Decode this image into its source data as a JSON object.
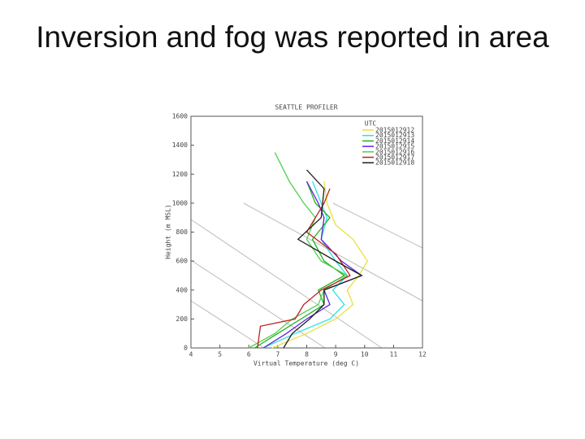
{
  "heading": "Inversion and fog was reported in area",
  "chart_data": {
    "type": "line",
    "title": "SEATTLE PROFILER",
    "xlabel": "Virtual Temperature (deg C)",
    "ylabel": "Height (m MSL)",
    "xlim": [
      4,
      12
    ],
    "xticks": [
      4,
      5,
      6,
      7,
      8,
      9,
      10,
      11,
      12
    ],
    "ylim": [
      0,
      1600
    ],
    "yticks": [
      0,
      200,
      400,
      600,
      800,
      1000,
      1200,
      1400,
      1600
    ],
    "legend_title": "UTC",
    "legend": "upper right",
    "series": [
      {
        "name": "2015012912",
        "color": "#e8e040",
        "x": [
          6.8,
          8.0,
          9.0,
          9.6,
          9.4,
          9.8,
          10.1,
          9.6,
          9.0,
          8.7,
          8.6
        ],
        "values": [
          0,
          100,
          200,
          300,
          400,
          500,
          600,
          750,
          850,
          1000,
          1150
        ]
      },
      {
        "name": "2015012913",
        "color": "#30e0e0",
        "x": [
          6.5,
          7.6,
          8.8,
          9.3,
          8.9,
          9.4,
          9.0,
          8.5,
          8.7,
          8.5,
          8.2
        ],
        "values": [
          0,
          100,
          200,
          300,
          400,
          500,
          600,
          750,
          900,
          1000,
          1150
        ]
      },
      {
        "name": "2015012914",
        "color": "#20b020",
        "x": [
          6.2,
          7.0,
          7.8,
          8.6,
          8.4,
          9.3,
          8.6,
          8.2,
          8.8,
          8.3,
          8.0
        ],
        "values": [
          0,
          100,
          200,
          300,
          400,
          500,
          600,
          750,
          900,
          1000,
          1150
        ]
      },
      {
        "name": "2015012915",
        "color": "#6020e0",
        "x": [
          6.5,
          7.3,
          8.0,
          8.8,
          8.6,
          9.9,
          9.2,
          8.5,
          8.6,
          8.4,
          8.0
        ],
        "values": [
          0,
          100,
          200,
          300,
          400,
          500,
          600,
          750,
          900,
          1000,
          1150
        ]
      },
      {
        "name": "2015012916",
        "color": "#50d050",
        "x": [
          6.0,
          6.9,
          7.5,
          8.4,
          8.6,
          9.4,
          8.5,
          8.0,
          8.3,
          7.9,
          7.4,
          6.9
        ],
        "values": [
          0,
          100,
          200,
          300,
          400,
          500,
          600,
          750,
          900,
          1000,
          1150,
          1350
        ]
      },
      {
        "name": "2015012917",
        "color": "#c02020",
        "x": [
          6.3,
          6.4,
          7.6,
          7.9,
          8.5,
          9.5,
          9.0,
          8.0,
          8.6,
          8.8
        ],
        "values": [
          0,
          150,
          200,
          300,
          400,
          500,
          650,
          800,
          1000,
          1100
        ]
      },
      {
        "name": "2015012918",
        "color": "#202020",
        "x": [
          7.2,
          7.5,
          8.1,
          8.6,
          8.6,
          9.9,
          9.0,
          7.7,
          8.5,
          8.6,
          8.0
        ],
        "values": [
          0,
          100,
          200,
          300,
          400,
          500,
          600,
          750,
          900,
          1100,
          1230
        ]
      }
    ]
  }
}
